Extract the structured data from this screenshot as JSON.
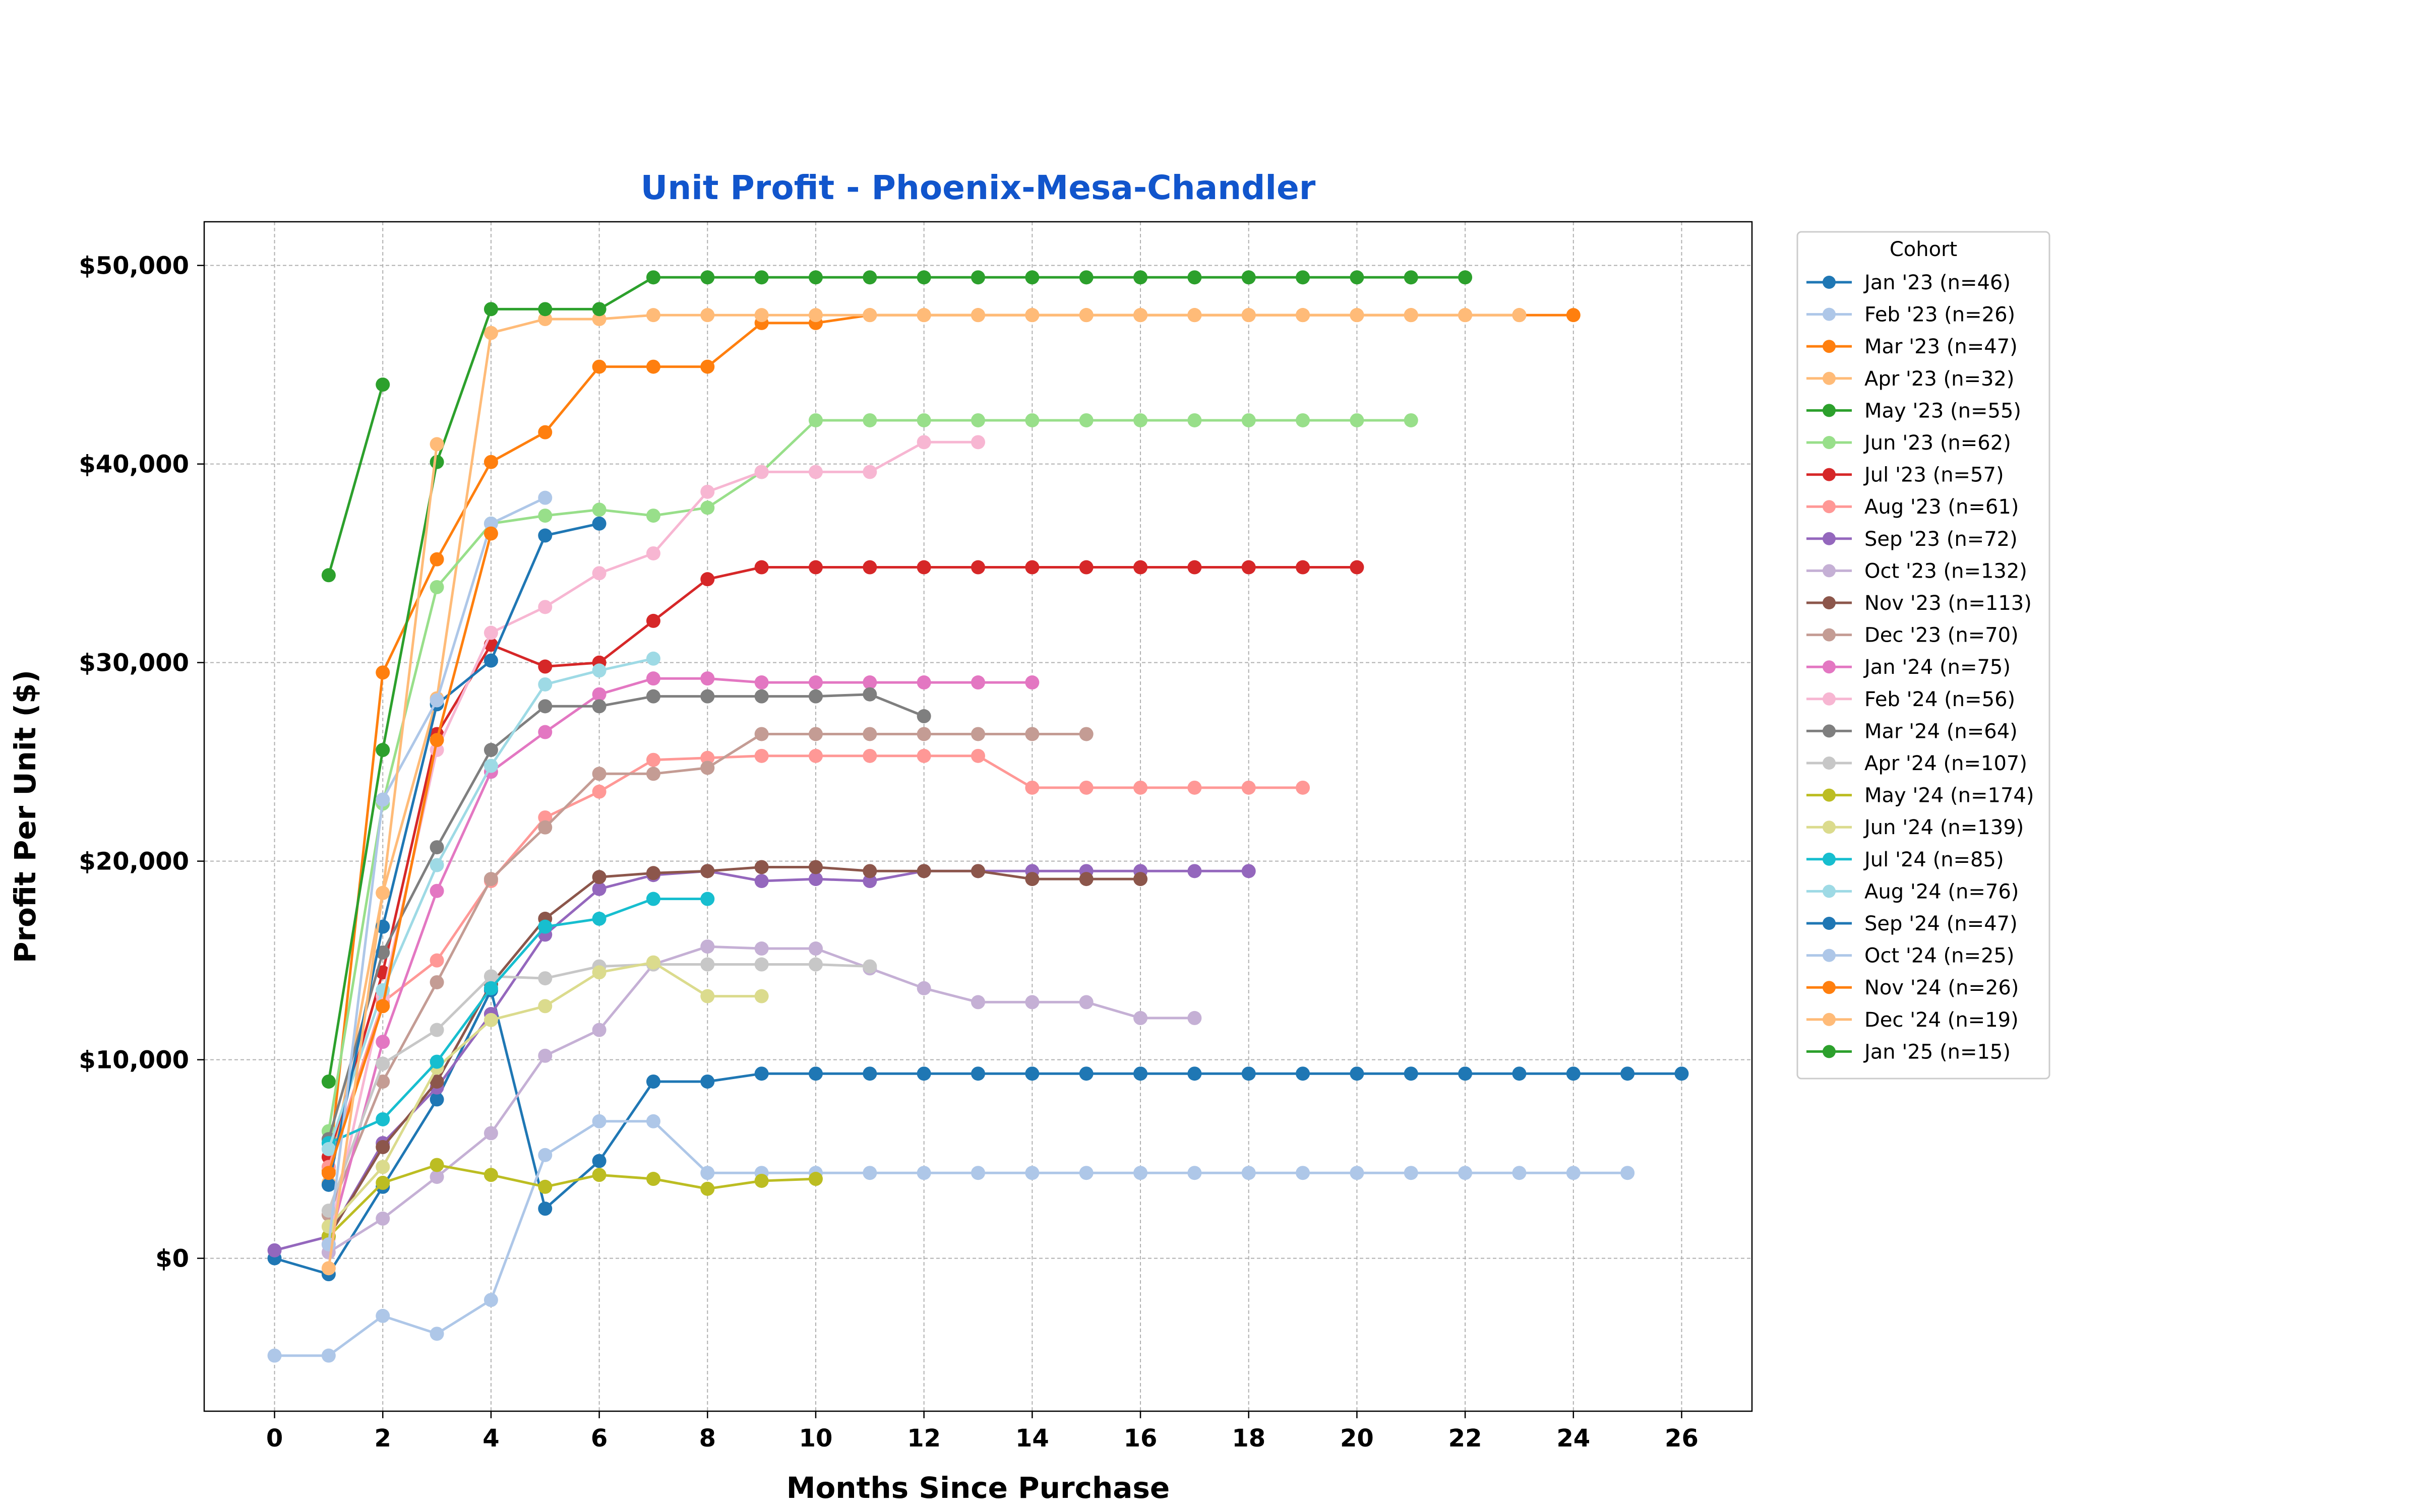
{
  "chart_data": {
    "type": "line",
    "title": "Unit Profit - Phoenix-Mesa-Chandler",
    "xlabel": "Months Since Purchase",
    "ylabel": "Profit Per Unit ($)",
    "xlim": [
      -1.3,
      27.3
    ],
    "ylim": [
      -7700,
      52200
    ],
    "xticks": [
      0,
      2,
      4,
      6,
      8,
      10,
      12,
      14,
      16,
      18,
      20,
      22,
      24,
      26
    ],
    "yticks": [
      0,
      10000,
      20000,
      30000,
      40000,
      50000
    ],
    "ytick_labels": [
      "$0",
      "$10,000",
      "$20,000",
      "$30,000",
      "$40,000",
      "$50,000"
    ],
    "grid": true,
    "legend_title": "Cohort",
    "legend_position": "outside-right",
    "colors": {
      "title": "#1155cc",
      "grid": "#b0b0b0"
    },
    "series": [
      {
        "name": "Jan '23 (n=46)",
        "color": "#1f77b4",
        "x": [
          0,
          1,
          2,
          3,
          4,
          5,
          6,
          7,
          8,
          9,
          10,
          11,
          12,
          13,
          14,
          15,
          16,
          17,
          18,
          19,
          20,
          21,
          22,
          23,
          24,
          25,
          26
        ],
        "y": [
          0,
          -800,
          3600,
          8000,
          13500,
          2500,
          4900,
          8900,
          8900,
          9300,
          9300,
          9300,
          9300,
          9300,
          9300,
          9300,
          9300,
          9300,
          9300,
          9300,
          9300,
          9300,
          9300,
          9300,
          9300,
          9300,
          9300
        ]
      },
      {
        "name": "Feb '23 (n=26)",
        "color": "#aec7e8",
        "x": [
          0,
          1,
          2,
          3,
          4,
          5,
          6,
          7,
          8,
          9,
          10,
          11,
          12,
          13,
          14,
          15,
          16,
          17,
          18,
          19,
          20,
          21,
          22,
          23,
          24,
          25
        ],
        "y": [
          -4900,
          -4900,
          -2900,
          -3800,
          -2100,
          5200,
          6900,
          6900,
          4300,
          4300,
          4300,
          4300,
          4300,
          4300,
          4300,
          4300,
          4300,
          4300,
          4300,
          4300,
          4300,
          4300,
          4300,
          4300,
          4300,
          4300
        ]
      },
      {
        "name": "Mar '23 (n=47)",
        "color": "#ff7f0e",
        "x": [
          1,
          2,
          3,
          4,
          5,
          6,
          7,
          8,
          9,
          10,
          11,
          12,
          13,
          14,
          15,
          16,
          17,
          18,
          19,
          20,
          21,
          22,
          23,
          24
        ],
        "y": [
          4400,
          29500,
          35200,
          40100,
          41600,
          44900,
          44900,
          44900,
          47100,
          47100,
          47500,
          47500,
          47500,
          47500,
          47500,
          47500,
          47500,
          47500,
          47500,
          47500,
          47500,
          47500,
          47500,
          47500
        ]
      },
      {
        "name": "Apr '23 (n=32)",
        "color": "#ffbb78",
        "x": [
          1,
          2,
          3,
          4,
          5,
          6,
          7,
          8,
          9,
          10,
          11,
          12,
          13,
          14,
          15,
          16,
          17,
          18,
          19,
          20,
          21,
          22,
          23
        ],
        "y": [
          3800,
          18400,
          28200,
          46600,
          47300,
          47300,
          47500,
          47500,
          47500,
          47500,
          47500,
          47500,
          47500,
          47500,
          47500,
          47500,
          47500,
          47500,
          47500,
          47500,
          47500,
          47500,
          47500
        ]
      },
      {
        "name": "May '23 (n=55)",
        "color": "#2ca02c",
        "x": [
          1,
          2,
          3,
          4,
          5,
          6,
          7,
          8,
          9,
          10,
          11,
          12,
          13,
          14,
          15,
          16,
          17,
          18,
          19,
          20,
          21,
          22
        ],
        "y": [
          8900,
          25600,
          40100,
          47800,
          47800,
          47800,
          49400,
          49400,
          49400,
          49400,
          49400,
          49400,
          49400,
          49400,
          49400,
          49400,
          49400,
          49400,
          49400,
          49400,
          49400,
          49400
        ]
      },
      {
        "name": "Jun '23 (n=62)",
        "color": "#98df8a",
        "x": [
          1,
          2,
          3,
          4,
          5,
          6,
          7,
          8,
          9,
          10,
          11,
          12,
          13,
          14,
          15,
          16,
          17,
          18,
          19,
          20,
          21
        ],
        "y": [
          6400,
          22900,
          33800,
          37000,
          37400,
          37700,
          37400,
          37800,
          39600,
          42200,
          42200,
          42200,
          42200,
          42200,
          42200,
          42200,
          42200,
          42200,
          42200,
          42200,
          42200
        ]
      },
      {
        "name": "Jul '23 (n=57)",
        "color": "#d62728",
        "x": [
          1,
          2,
          3,
          4,
          5,
          6,
          7,
          8,
          9,
          10,
          11,
          12,
          13,
          14,
          15,
          16,
          17,
          18,
          19,
          20
        ],
        "y": [
          5100,
          14400,
          26400,
          30900,
          29800,
          30000,
          32100,
          34200,
          34800,
          34800,
          34800,
          34800,
          34800,
          34800,
          34800,
          34800,
          34800,
          34800,
          34800,
          34800
        ]
      },
      {
        "name": "Aug '23 (n=61)",
        "color": "#ff9896",
        "x": [
          1,
          2,
          3,
          4,
          5,
          6,
          7,
          8,
          9,
          10,
          11,
          12,
          13,
          14,
          15,
          16,
          17,
          18,
          19
        ],
        "y": [
          4600,
          12900,
          15000,
          19000,
          22200,
          23500,
          25100,
          25200,
          25300,
          25300,
          25300,
          25300,
          25300,
          23700,
          23700,
          23700,
          23700,
          23700,
          23700
        ]
      },
      {
        "name": "Sep '23 (n=72)",
        "color": "#9467bd",
        "x": [
          0,
          1,
          2,
          3,
          4,
          5,
          6,
          7,
          8,
          9,
          10,
          11,
          12,
          13,
          14,
          15,
          16,
          17,
          18
        ],
        "y": [
          400,
          1100,
          5800,
          8600,
          12300,
          16300,
          18600,
          19300,
          19500,
          19000,
          19100,
          19000,
          19500,
          19500,
          19500,
          19500,
          19500,
          19500,
          19500
        ]
      },
      {
        "name": "Oct '23 (n=132)",
        "color": "#c5b0d5",
        "x": [
          1,
          2,
          3,
          4,
          5,
          6,
          7,
          8,
          9,
          10,
          11,
          12,
          13,
          14,
          15,
          16,
          17
        ],
        "y": [
          300,
          2000,
          4100,
          6300,
          10200,
          11500,
          14800,
          15700,
          15600,
          15600,
          14600,
          13600,
          12900,
          12900,
          12900,
          12100,
          12100
        ]
      },
      {
        "name": "Nov '23 (n=113)",
        "color": "#8c564b",
        "x": [
          1,
          2,
          3,
          4,
          5,
          6,
          7,
          8,
          9,
          10,
          11,
          12,
          13,
          14,
          15,
          16
        ],
        "y": [
          1100,
          5600,
          8900,
          13800,
          17100,
          19200,
          19400,
          19500,
          19700,
          19700,
          19500,
          19500,
          19500,
          19100,
          19100,
          19100
        ]
      },
      {
        "name": "Dec '23 (n=70)",
        "color": "#c49c94",
        "x": [
          1,
          2,
          3,
          4,
          5,
          6,
          7,
          8,
          9,
          10,
          11,
          12,
          13,
          14,
          15
        ],
        "y": [
          2200,
          8900,
          13900,
          19100,
          21700,
          24400,
          24400,
          24700,
          26400,
          26400,
          26400,
          26400,
          26400,
          26400,
          26400
        ]
      },
      {
        "name": "Jan '24 (n=75)",
        "color": "#e377c2",
        "x": [
          1,
          2,
          3,
          4,
          5,
          6,
          7,
          8,
          9,
          10,
          11,
          12,
          13,
          14
        ],
        "y": [
          700,
          10900,
          18500,
          24500,
          26500,
          28400,
          29200,
          29200,
          29000,
          29000,
          29000,
          29000,
          29000,
          29000
        ]
      },
      {
        "name": "Feb '24 (n=56)",
        "color": "#f7b6d2",
        "x": [
          1,
          2,
          3,
          4,
          5,
          6,
          7,
          8,
          9,
          10,
          11,
          12,
          13
        ],
        "y": [
          1000,
          13200,
          25600,
          31500,
          32800,
          34500,
          35500,
          38600,
          39600,
          39600,
          39600,
          41100,
          41100
        ]
      },
      {
        "name": "Mar '24 (n=64)",
        "color": "#7f7f7f",
        "x": [
          1,
          2,
          3,
          4,
          5,
          6,
          7,
          8,
          9,
          10,
          11,
          12
        ],
        "y": [
          6000,
          15400,
          20700,
          25600,
          27800,
          27800,
          28300,
          28300,
          28300,
          28300,
          28400,
          27300
        ]
      },
      {
        "name": "Apr '24 (n=107)",
        "color": "#c7c7c7",
        "x": [
          1,
          2,
          3,
          4,
          5,
          6,
          7,
          8,
          9,
          10,
          11
        ],
        "y": [
          2400,
          9800,
          11500,
          14200,
          14100,
          14700,
          14800,
          14800,
          14800,
          14800,
          14700
        ]
      },
      {
        "name": "May '24 (n=174)",
        "color": "#bcbd22",
        "x": [
          1,
          2,
          3,
          4,
          5,
          6,
          7,
          8,
          9,
          10
        ],
        "y": [
          1100,
          3800,
          4700,
          4200,
          3600,
          4200,
          4000,
          3500,
          3900,
          4000
        ]
      },
      {
        "name": "Jun '24 (n=139)",
        "color": "#dbdb8d",
        "x": [
          1,
          2,
          3,
          4,
          5,
          6,
          7,
          8,
          9
        ],
        "y": [
          1600,
          4600,
          9600,
          12000,
          12700,
          14400,
          14900,
          13200,
          13200
        ]
      },
      {
        "name": "Jul '24 (n=85)",
        "color": "#17becf",
        "x": [
          1,
          2,
          3,
          4,
          5,
          6,
          7,
          8
        ],
        "y": [
          5800,
          7000,
          9900,
          13600,
          16700,
          17100,
          18100,
          18100
        ]
      },
      {
        "name": "Aug '24 (n=76)",
        "color": "#9edae5",
        "x": [
          1,
          2,
          3,
          4,
          5,
          6,
          7
        ],
        "y": [
          5500,
          13500,
          19800,
          24800,
          28900,
          29600,
          30200
        ]
      },
      {
        "name": "Sep '24 (n=47)",
        "color": "#1f77b4",
        "x": [
          1,
          2,
          3,
          4,
          5,
          6
        ],
        "y": [
          3700,
          16700,
          27900,
          30100,
          36400,
          37000
        ]
      },
      {
        "name": "Oct '24 (n=25)",
        "color": "#aec7e8",
        "x": [
          1,
          2,
          3,
          4,
          5
        ],
        "y": [
          700,
          23100,
          28100,
          37000,
          38300
        ]
      },
      {
        "name": "Nov '24 (n=26)",
        "color": "#ff7f0e",
        "x": [
          1,
          2,
          3,
          4
        ],
        "y": [
          4300,
          12700,
          26100,
          36500
        ]
      },
      {
        "name": "Dec '24 (n=19)",
        "color": "#ffbb78",
        "x": [
          1,
          2,
          3
        ],
        "y": [
          -500,
          18400,
          41000
        ]
      },
      {
        "name": "Jan '25 (n=15)",
        "color": "#2ca02c",
        "x": [
          1,
          2
        ],
        "y": [
          34400,
          44000
        ]
      }
    ]
  }
}
